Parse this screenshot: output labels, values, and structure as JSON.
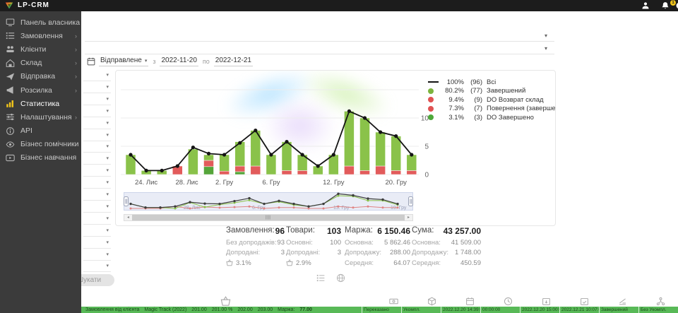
{
  "topbar": {
    "logo": "LP-CRM",
    "notification_badge": "1"
  },
  "sidebar": {
    "items": [
      {
        "label": "Панель власника",
        "icon": "owner-panel-icon",
        "chevron": false,
        "active": false
      },
      {
        "label": "Замовлення",
        "icon": "orders-icon",
        "chevron": true,
        "active": false
      },
      {
        "label": "Клієнти",
        "icon": "clients-icon",
        "chevron": true,
        "active": false
      },
      {
        "label": "Склад",
        "icon": "warehouse-icon",
        "chevron": true,
        "active": false
      },
      {
        "label": "Відправка",
        "icon": "shipping-icon",
        "chevron": true,
        "active": false
      },
      {
        "label": "Розсилка",
        "icon": "mailing-icon",
        "chevron": true,
        "active": false
      },
      {
        "label": "Статистика",
        "icon": "statistics-icon",
        "chevron": false,
        "active": true
      },
      {
        "label": "Налаштування",
        "icon": "settings-icon",
        "chevron": true,
        "active": false
      },
      {
        "label": "API",
        "icon": "api-icon",
        "chevron": false,
        "active": false
      },
      {
        "label": "Бізнес помічники",
        "icon": "helpers-icon",
        "chevron": false,
        "active": false
      },
      {
        "label": "Бізнес навчання",
        "icon": "learning-icon",
        "chevron": false,
        "active": false
      }
    ]
  },
  "filters": {
    "period_label": "Відправлене",
    "from_label": "з",
    "to_label": "по",
    "date_from": "2022-11-20",
    "date_to": "2022-12-21",
    "search_button": "Шукати"
  },
  "chart_data": {
    "type": "bar+line",
    "description": "stacked status bars per day with total line, 2022-11-20..2022-12-21",
    "ylim": [
      0,
      15
    ],
    "yticks": [
      "0",
      "5",
      "10"
    ],
    "xticks": [
      {
        "slot": 2,
        "label": "24. Лис"
      },
      {
        "slot": 4.6,
        "label": "28. Лис"
      },
      {
        "slot": 7,
        "label": "2. Гру"
      },
      {
        "slot": 10,
        "label": "6. Гру"
      },
      {
        "slot": 14,
        "label": "12. Гру"
      },
      {
        "slot": 18,
        "label": "20. Гру"
      }
    ],
    "points": [
      {
        "total": 3.5,
        "green": 3.5,
        "red": 0,
        "green2": 0
      },
      {
        "total": 0.7,
        "green": 0.7,
        "red": 0,
        "green2": 0
      },
      {
        "total": 0.7,
        "green": 0.7,
        "red": 0,
        "green2": 0
      },
      {
        "total": 1.5,
        "green": 0,
        "red": 1.5,
        "green2": 0
      },
      {
        "total": 4.8,
        "green": 4.5,
        "red": 0,
        "green2": 0
      },
      {
        "total": 3.7,
        "green": 1.0,
        "red": 1.1,
        "green2": 1.4
      },
      {
        "total": 3.5,
        "green": 2.9,
        "red": 0.6,
        "green2": 0
      },
      {
        "total": 5.6,
        "green": 4.3,
        "red": 1.0,
        "green2": 0.5
      },
      {
        "total": 7.8,
        "green": 6.3,
        "red": 1.5,
        "green2": 0
      },
      {
        "total": 3.5,
        "green": 3.5,
        "red": 0,
        "green2": 0
      },
      {
        "total": 5.8,
        "green": 5.1,
        "red": 0.7,
        "green2": 0
      },
      {
        "total": 3.5,
        "green": 2.8,
        "red": 0.7,
        "green2": 0
      },
      {
        "total": 1.5,
        "green": 1.5,
        "red": 0,
        "green2": 0
      },
      {
        "total": 3.5,
        "green": 3.5,
        "red": 0,
        "green2": 0
      },
      {
        "total": 11.2,
        "green": 9.7,
        "red": 1.5,
        "green2": 0
      },
      {
        "total": 10.0,
        "green": 9.3,
        "red": 0.7,
        "green2": 0
      },
      {
        "total": 7.5,
        "green": 6.0,
        "red": 1.5,
        "green2": 0
      },
      {
        "total": 6.8,
        "green": 6.1,
        "red": 0.7,
        "green2": 0
      },
      {
        "total": 3.5,
        "green": 2.8,
        "red": 0.7,
        "green2": 0
      }
    ],
    "legend": [
      {
        "type": "line",
        "color": "#141414",
        "pct": "100%",
        "count": "(96)",
        "label": "Всі"
      },
      {
        "type": "dot",
        "color": "#7cb43e",
        "pct": "80.2%",
        "count": "(77)",
        "label": "Завершений"
      },
      {
        "type": "dot",
        "color": "#e05252",
        "pct": "9.4%",
        "count": "(9)",
        "label": "DO Возврат склад"
      },
      {
        "type": "dot",
        "color": "#e05252",
        "pct": "7.3%",
        "count": "(7)",
        "label": "Повернення (завершений)"
      },
      {
        "type": "dot",
        "color": "#4ea83a",
        "pct": "3.1%",
        "count": "(3)",
        "label": "DO Завершено"
      }
    ],
    "navigator_labels": [
      "28. Лис",
      "6. Гру",
      "13. Гру",
      "19. Гру"
    ]
  },
  "stats": {
    "cols": [
      {
        "title": "Замовлення:",
        "value": "96",
        "rows": [
          {
            "label": "Без допродажів:",
            "value": "93"
          },
          {
            "label": "Допродані:",
            "value": "3"
          }
        ],
        "upsell": "3.1%"
      },
      {
        "title": "Товари:",
        "value": "103",
        "rows": [
          {
            "label": "Основні:",
            "value": "100"
          },
          {
            "label": "Допродані:",
            "value": "3"
          }
        ],
        "upsell": "2.9%"
      },
      {
        "title": "Маржа:",
        "value": "6 150.46",
        "rows": [
          {
            "label": "Основна:",
            "value": "5 862.46"
          },
          {
            "label": "Допродажу:",
            "value": "288.00"
          },
          {
            "label": "Середня:",
            "value": "64.07"
          }
        ]
      },
      {
        "title": "Сума:",
        "value": "43 257.00",
        "rows": [
          {
            "label": "Основна:",
            "value": "41 509.00"
          },
          {
            "label": "Допродажу:",
            "value": "1 748.00"
          },
          {
            "label": "Середня:",
            "value": "450.59"
          }
        ]
      }
    ]
  },
  "table_row": {
    "fragments": [
      "Замовлення від клієнта",
      "Magic Track (2022)",
      "201.00",
      "201.00 %",
      "202.00",
      "203.00",
      "Маржа:",
      "77.00"
    ],
    "cells": [
      "Переказано",
      "Укомпл.",
      "2022.12.20 14:39:06",
      "00:00:00",
      "2022.12.20 15:00:00",
      "2022.12.21 10:07:05",
      "Завершений",
      "Без Укомпл."
    ]
  },
  "icons": {
    "topbar": [
      "user-icon",
      "bell-icon"
    ],
    "chart_toolbar": [
      "list-chart-icon",
      "globe-icon"
    ],
    "table_header": [
      "basket-icon",
      "banknote-icon",
      "package-icon",
      "calendar-icon",
      "clock-icon",
      "calendar-down-icon",
      "calendar-check-icon",
      "chart-lines-icon",
      "network-icon"
    ]
  },
  "colors": {
    "bar_green": "#8ac24a",
    "bar_red": "#e25b5b",
    "bar_dark_green": "#55a53a",
    "total_line": "#141414",
    "accent_gold": "#f0c41b",
    "row_green": "#58b957",
    "sidebar_bg": "#3b3b3b",
    "topbar_bg": "#1c1c1c"
  }
}
